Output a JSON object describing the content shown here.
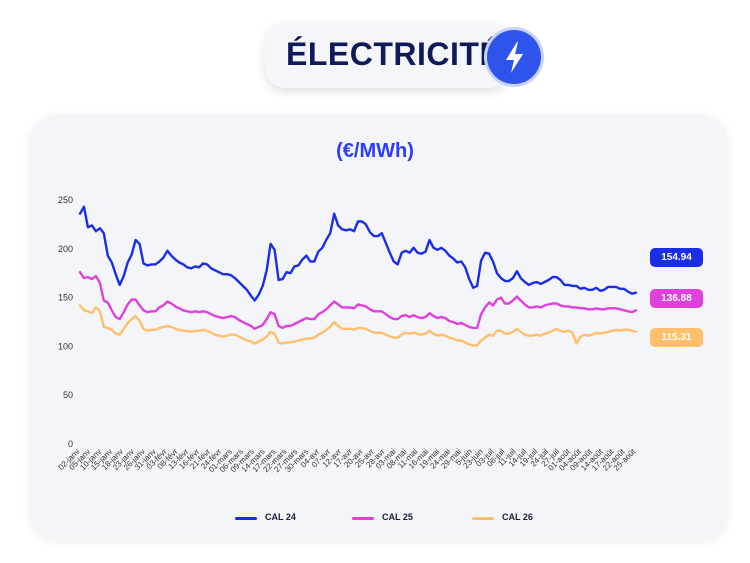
{
  "header": {
    "title": "ÉLECTRICITÉ",
    "icon": "lightning-icon"
  },
  "colors": {
    "cal24": "#1a2ee6",
    "cal25": "#e040dc",
    "cal26": "#ffbf6b",
    "title": "#0f1a5a",
    "unit": "#2a3cff"
  },
  "chart_data": {
    "type": "line",
    "title": "(€/MWh)",
    "ylim": [
      0,
      250
    ],
    "yticks": [
      0,
      50,
      100,
      150,
      200,
      250
    ],
    "grid": false,
    "legend_position": "bottom",
    "x_tick_labels": [
      "02-janv",
      "05-janv",
      "10-janv",
      "15-janv",
      "18-janv",
      "23-janv",
      "26-janv",
      "31-janv",
      "03-févr",
      "08-févr",
      "13-févr",
      "16-févr",
      "21-févr",
      "24-févr",
      "01-mars",
      "06-mars",
      "09-mars",
      "14-mars",
      "17-mars",
      "22-mars",
      "27-mars",
      "30-mars",
      "04-avr",
      "07-avr",
      "12-avr",
      "17-avr",
      "20-avr",
      "25-avr",
      "28-avr",
      "03-mai",
      "08-mai",
      "11-mai",
      "16-mai",
      "19-mai",
      "24-mai",
      "29-mai",
      "5-juin",
      "23-juin",
      "03-juil",
      "06-juil",
      "11-juil",
      "14-juil",
      "19-juil",
      "24-juil",
      "27-juil",
      "01-août",
      "04-août",
      "09-août",
      "14-août",
      "17-août",
      "22-août",
      "25-août"
    ],
    "series": [
      {
        "name": "CAL 24",
        "color": "#1a2ee6",
        "last_value": "154.94",
        "values": [
          236,
          243,
          222,
          224,
          218,
          221,
          216,
          193,
          186,
          174,
          163,
          172,
          186,
          194,
          209,
          205,
          185,
          183,
          184,
          184,
          187,
          191,
          198,
          193,
          189,
          186,
          184,
          181,
          180,
          182,
          181,
          185,
          184,
          180,
          178,
          176,
          174,
          174,
          173,
          170,
          166,
          162,
          158,
          152,
          147,
          153,
          162,
          178,
          205,
          199,
          168,
          169,
          176,
          175,
          182,
          183,
          189,
          193,
          187,
          187,
          197,
          201,
          209,
          216,
          236,
          224,
          220,
          219,
          220,
          218,
          228,
          228,
          225,
          217,
          213,
          213,
          216,
          206,
          196,
          187,
          184,
          196,
          198,
          196,
          201,
          196,
          195,
          197,
          209,
          201,
          199,
          201,
          198,
          193,
          190,
          186,
          187,
          181,
          169,
          160,
          162,
          188,
          196,
          195,
          187,
          175,
          170,
          167,
          167,
          170,
          177,
          170,
          166,
          163,
          165,
          166,
          164,
          166,
          168,
          171,
          171,
          168,
          163,
          163,
          162,
          162,
          159,
          160,
          158,
          158,
          160,
          157,
          158,
          161,
          161,
          161,
          159,
          159,
          156,
          154,
          155
        ]
      },
      {
        "name": "CAL 25",
        "color": "#e040dc",
        "last_value": "136.88",
        "values": [
          176,
          170,
          171,
          169,
          172,
          165,
          147,
          145,
          137,
          130,
          128,
          135,
          143,
          148,
          148,
          142,
          137,
          135,
          136,
          136,
          140,
          142,
          146,
          144,
          141,
          139,
          137,
          136,
          135,
          136,
          135,
          136,
          135,
          133,
          131,
          130,
          129,
          130,
          131,
          130,
          127,
          125,
          123,
          121,
          118,
          120,
          122,
          128,
          135,
          133,
          121,
          119,
          121,
          121,
          123,
          125,
          127,
          129,
          128,
          128,
          133,
          135,
          138,
          142,
          146,
          143,
          140,
          140,
          140,
          139,
          143,
          142,
          141,
          138,
          136,
          136,
          136,
          133,
          130,
          128,
          128,
          131,
          132,
          130,
          132,
          130,
          129,
          130,
          134,
          131,
          129,
          130,
          129,
          126,
          125,
          123,
          124,
          122,
          120,
          119,
          119,
          133,
          140,
          145,
          142,
          148,
          150,
          144,
          144,
          147,
          151,
          147,
          143,
          140,
          140,
          141,
          140,
          142,
          143,
          144,
          144,
          142,
          141,
          141,
          140,
          140,
          139,
          139,
          138,
          138,
          139,
          138,
          138,
          139,
          139,
          139,
          138,
          137,
          136,
          135,
          137
        ]
      },
      {
        "name": "CAL 26",
        "color": "#ffbf6b",
        "last_value": "115.31",
        "values": [
          142,
          137,
          136,
          134,
          140,
          136,
          120,
          119,
          117,
          113,
          112,
          118,
          124,
          128,
          131,
          126,
          118,
          116,
          117,
          117,
          119,
          120,
          121,
          120,
          118,
          117,
          116,
          116,
          115,
          116,
          116,
          117,
          116,
          114,
          112,
          111,
          110,
          111,
          112,
          112,
          110,
          108,
          106,
          105,
          103,
          105,
          107,
          110,
          115,
          113,
          104,
          103,
          104,
          104,
          105,
          106,
          107,
          108,
          108,
          109,
          112,
          114,
          117,
          120,
          125,
          121,
          118,
          118,
          118,
          117,
          119,
          119,
          118,
          116,
          114,
          114,
          114,
          112,
          110,
          109,
          109,
          112,
          114,
          113,
          114,
          113,
          112,
          113,
          116,
          113,
          111,
          112,
          111,
          109,
          108,
          106,
          106,
          104,
          102,
          101,
          101,
          106,
          109,
          112,
          111,
          116,
          116,
          113,
          113,
          115,
          118,
          115,
          112,
          111,
          111,
          112,
          111,
          113,
          114,
          116,
          118,
          116,
          115,
          116,
          114,
          103,
          110,
          112,
          111,
          112,
          114,
          113,
          114,
          115,
          116,
          117,
          116,
          117,
          117,
          116,
          115
        ]
      }
    ]
  }
}
